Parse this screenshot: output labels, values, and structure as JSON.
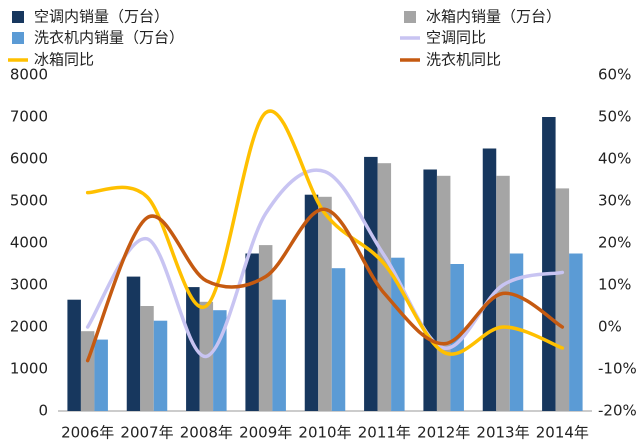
{
  "chart_data": {
    "type": "bar_line",
    "categories": [
      "2006年",
      "2007年",
      "2008年",
      "2009年",
      "2010年",
      "2011年",
      "2012年",
      "2013年",
      "2014年"
    ],
    "series": [
      {
        "name": "空调内销量（万台）",
        "color": "#17375e",
        "type": "bar",
        "values": [
          2650,
          3200,
          2950,
          3750,
          5150,
          6050,
          5750,
          6250,
          7000
        ]
      },
      {
        "name": "冰箱内销量（万台）",
        "color": "#a5a5a5",
        "type": "bar",
        "values": [
          1900,
          2500,
          2600,
          3950,
          5100,
          5900,
          5600,
          5600,
          5300
        ]
      },
      {
        "name": "洗衣机内销量（万台）",
        "color": "#5b9bd5",
        "type": "bar",
        "values": [
          1700,
          2150,
          2400,
          2650,
          3400,
          3650,
          3500,
          3750,
          3750
        ]
      },
      {
        "name": "空调同比",
        "color": "#c8c4f2",
        "type": "line",
        "axis": "y2",
        "values": [
          0,
          21,
          -7,
          27,
          37,
          17,
          -5,
          10,
          13
        ]
      },
      {
        "name": "冰箱同比",
        "color": "#ffc000",
        "type": "line",
        "axis": "y2",
        "values": [
          32,
          31,
          5,
          51,
          27,
          15,
          -6,
          0,
          -5
        ]
      },
      {
        "name": "洗衣机同比",
        "color": "#c55a11",
        "type": "line",
        "axis": "y2",
        "values": [
          -8,
          26,
          11,
          12,
          28,
          8,
          -4,
          8,
          0
        ]
      }
    ],
    "ylim": [
      0,
      8000
    ],
    "yticks": [
      0,
      1000,
      2000,
      3000,
      4000,
      5000,
      6000,
      7000,
      8000
    ],
    "y2lim": [
      -20,
      60
    ],
    "y2ticks": [
      {
        "value": -20,
        "label": "-20%"
      },
      {
        "value": -10,
        "label": "-10%"
      },
      {
        "value": 0,
        "label": "0%"
      },
      {
        "value": 10,
        "label": "10%"
      },
      {
        "value": 20,
        "label": "20%"
      },
      {
        "value": 30,
        "label": "30%"
      },
      {
        "value": 40,
        "label": "40%"
      },
      {
        "value": 50,
        "label": "50%"
      },
      {
        "value": 60,
        "label": "60%"
      }
    ]
  }
}
